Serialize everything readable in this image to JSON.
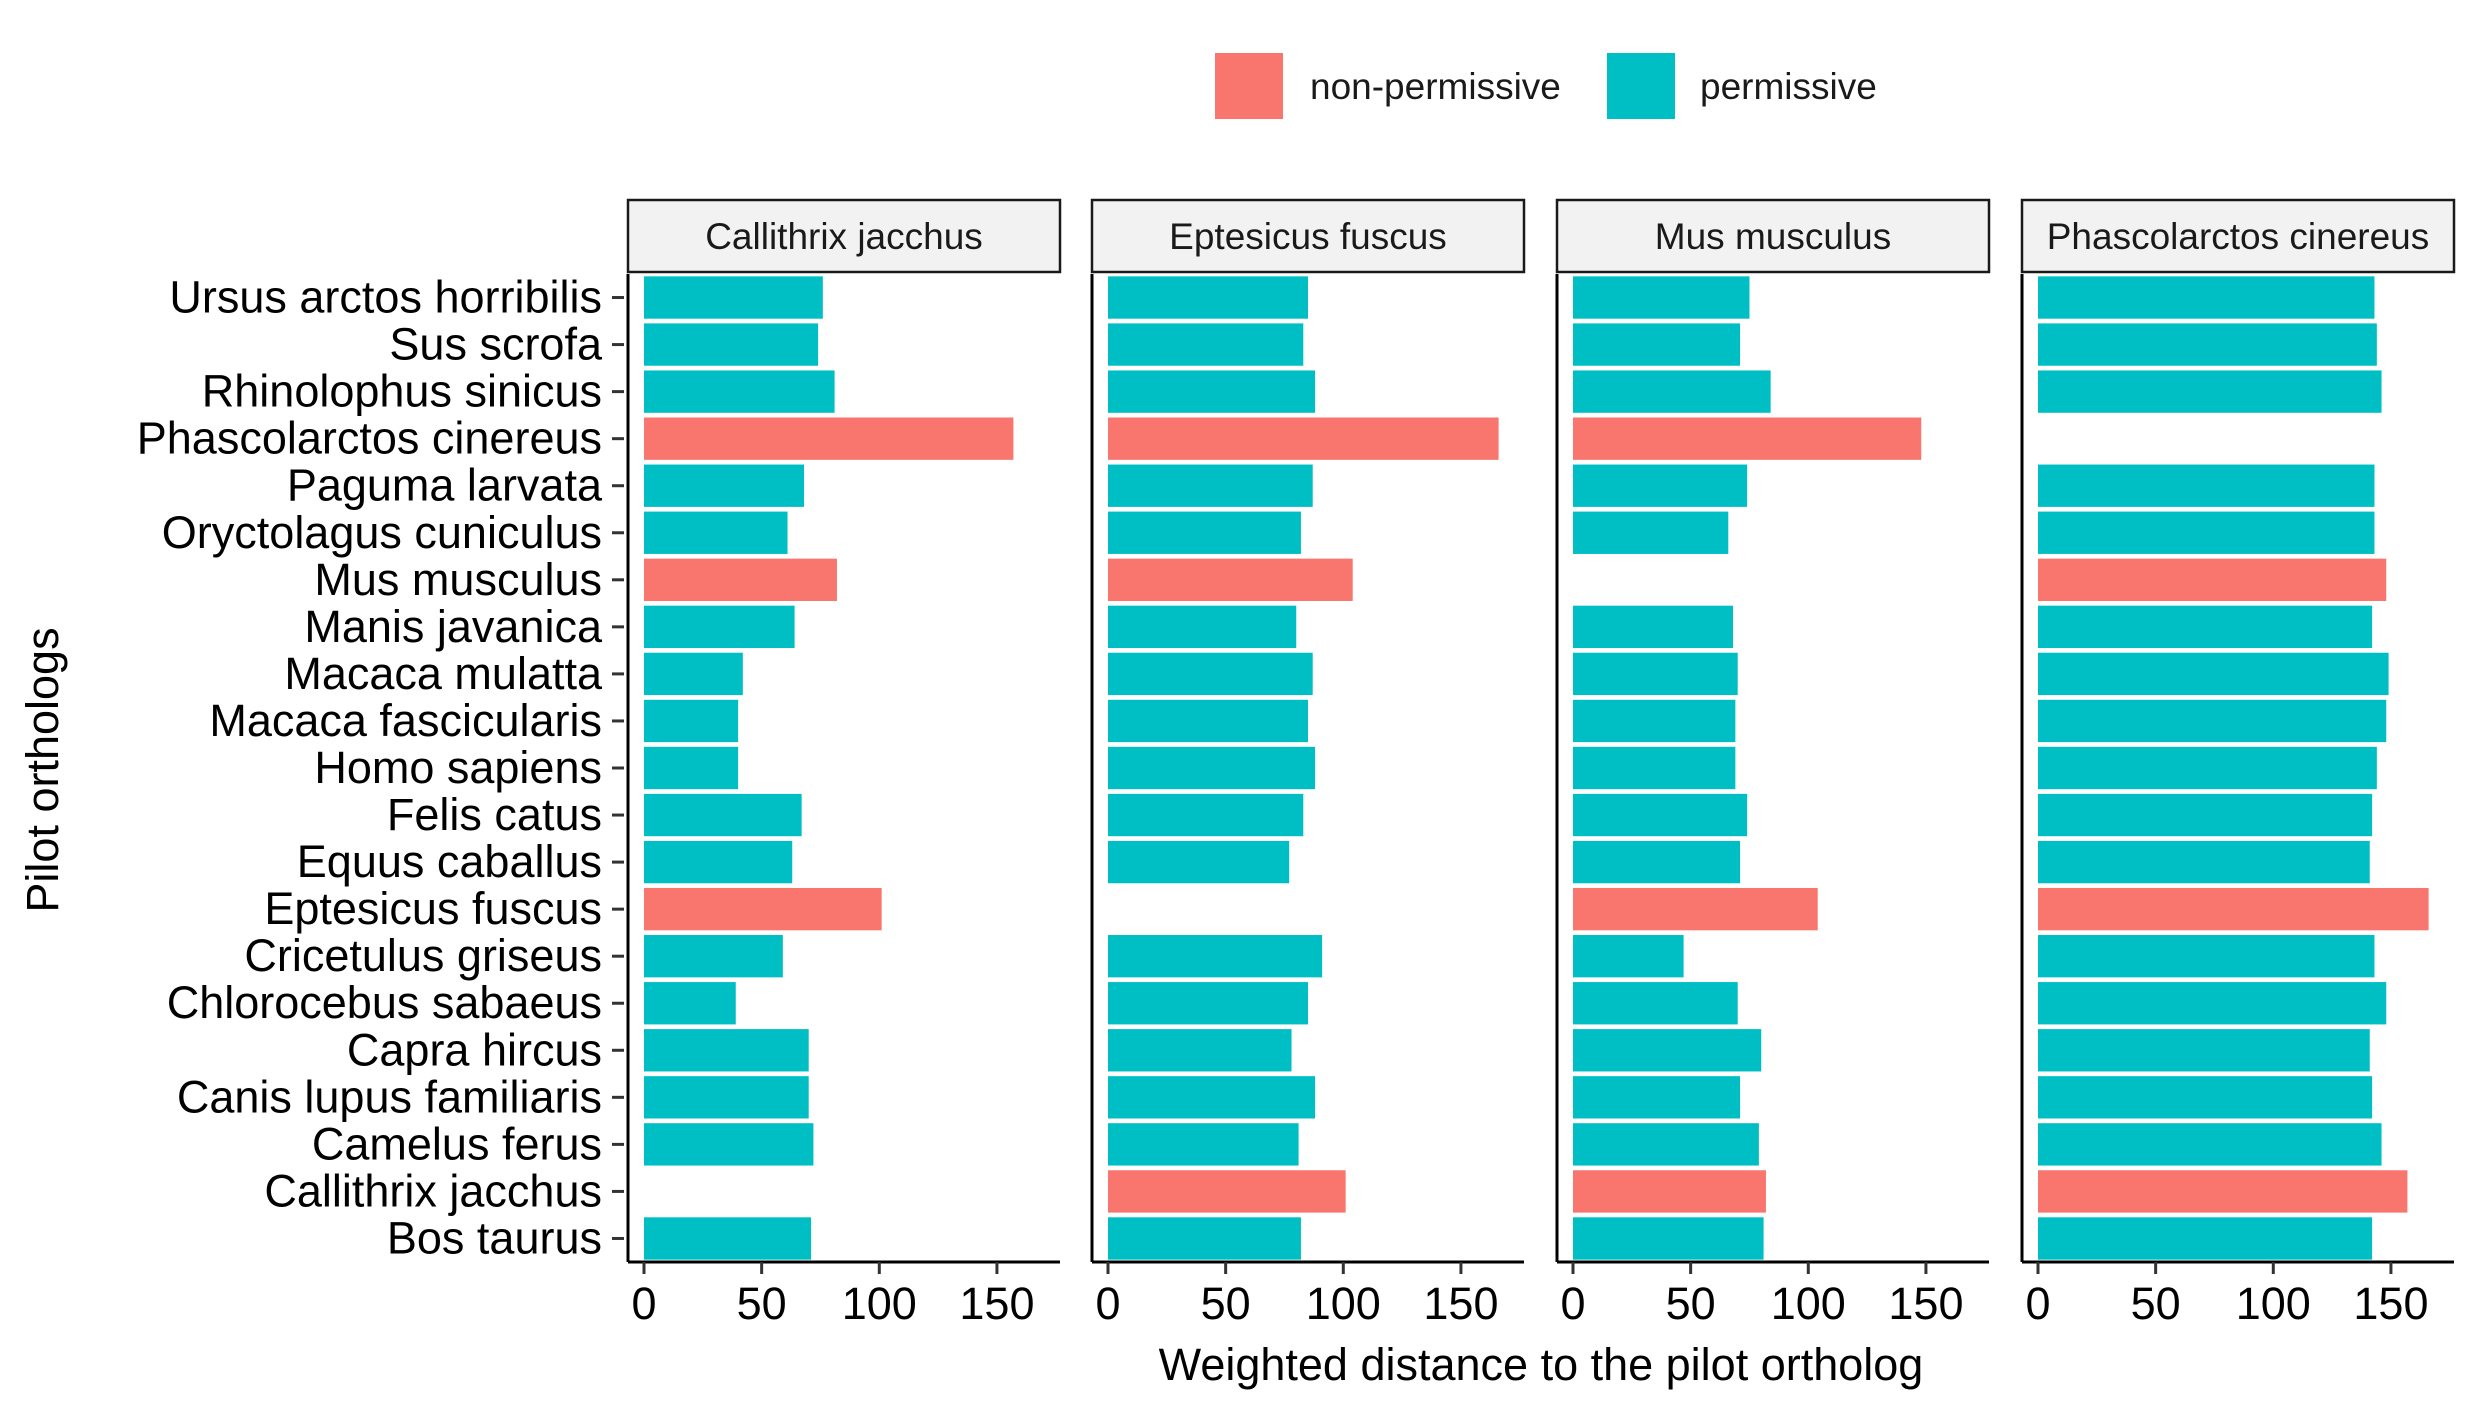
{
  "chart_data": {
    "type": "bar",
    "orientation": "horizontal",
    "xlabel": "Weighted distance to the pilot ortholog",
    "ylabel": "Pilot orthologs",
    "xlim": [
      0,
      170
    ],
    "x_ticks": [
      0,
      50,
      100,
      150
    ],
    "legend": {
      "placement": "top",
      "entries": [
        {
          "name": "non-permissive",
          "color": "#F8766D"
        },
        {
          "name": "permissive",
          "color": "#00BFC4"
        }
      ]
    },
    "categories": [
      "Ursus arctos horribilis",
      "Sus scrofa",
      "Rhinolophus sinicus",
      "Phascolarctos cinereus",
      "Paguma larvata",
      "Oryctolagus cuniculus",
      "Mus musculus",
      "Manis javanica",
      "Macaca mulatta",
      "Macaca fascicularis",
      "Homo sapiens",
      "Felis catus",
      "Equus caballus",
      "Eptesicus fuscus",
      "Cricetulus griseus",
      "Chlorocebus sabaeus",
      "Capra hircus",
      "Canis lupus familiaris",
      "Camelus ferus",
      "Callithrix jacchus",
      "Bos taurus"
    ],
    "panels": [
      {
        "title": "Callithrix jacchus",
        "values": [
          76,
          74,
          81,
          157,
          68,
          61,
          82,
          64,
          42,
          40,
          40,
          67,
          63,
          101,
          59,
          39,
          70,
          70,
          72,
          null,
          71
        ],
        "status": [
          "p",
          "p",
          "p",
          "n",
          "p",
          "p",
          "n",
          "p",
          "p",
          "p",
          "p",
          "p",
          "p",
          "n",
          "p",
          "p",
          "p",
          "p",
          "p",
          null,
          "p"
        ]
      },
      {
        "title": "Eptesicus fuscus",
        "values": [
          85,
          83,
          88,
          166,
          87,
          82,
          104,
          80,
          87,
          85,
          88,
          83,
          77,
          null,
          91,
          85,
          78,
          88,
          81,
          101,
          82
        ],
        "status": [
          "p",
          "p",
          "p",
          "n",
          "p",
          "p",
          "n",
          "p",
          "p",
          "p",
          "p",
          "p",
          "p",
          null,
          "p",
          "p",
          "p",
          "p",
          "p",
          "n",
          "p"
        ]
      },
      {
        "title": "Mus musculus",
        "values": [
          75,
          71,
          84,
          148,
          74,
          66,
          null,
          68,
          70,
          69,
          69,
          74,
          71,
          104,
          47,
          70,
          80,
          71,
          79,
          82,
          81
        ],
        "status": [
          "p",
          "p",
          "p",
          "n",
          "p",
          "p",
          null,
          "p",
          "p",
          "p",
          "p",
          "p",
          "p",
          "n",
          "p",
          "p",
          "p",
          "p",
          "p",
          "n",
          "p"
        ]
      },
      {
        "title": "Phascolarctos cinereus",
        "values": [
          143,
          144,
          146,
          null,
          143,
          143,
          148,
          142,
          149,
          148,
          144,
          142,
          141,
          166,
          143,
          148,
          141,
          142,
          146,
          157,
          142
        ],
        "status": [
          "p",
          "p",
          "p",
          null,
          "p",
          "p",
          "n",
          "p",
          "p",
          "p",
          "p",
          "p",
          "p",
          "n",
          "p",
          "p",
          "p",
          "p",
          "p",
          "n",
          "p"
        ]
      }
    ]
  }
}
